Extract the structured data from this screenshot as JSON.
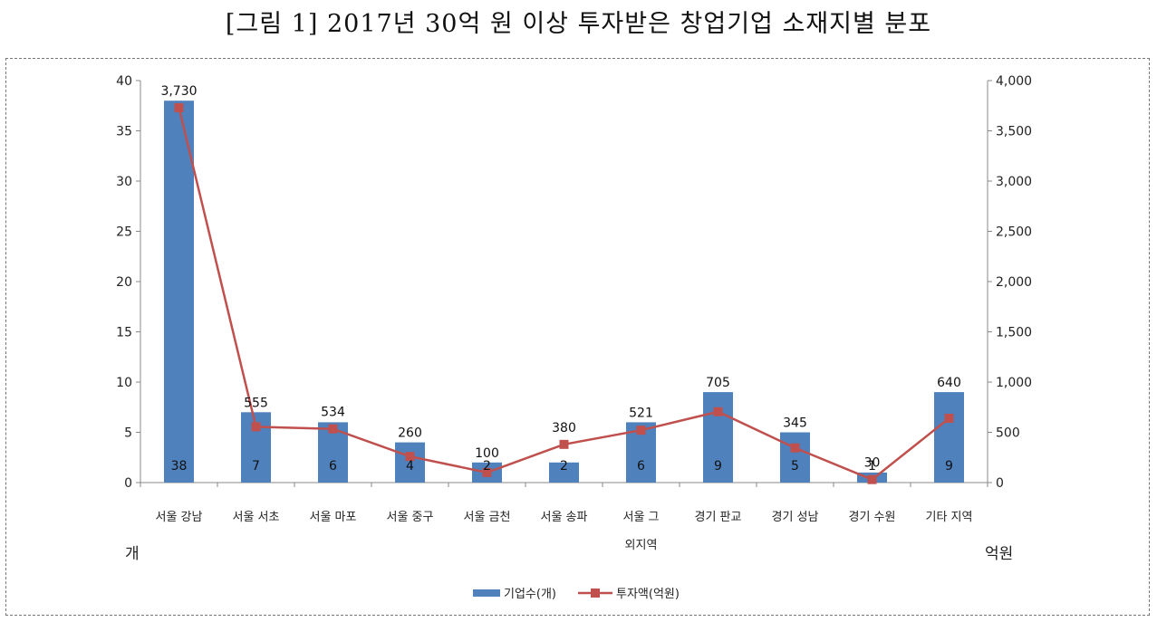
{
  "title": "[그림 1] 2017년 30억 원 이상 투자받은 창업기업 소재지별 분포",
  "left_unit": "개",
  "right_unit": "억원",
  "colors": {
    "bar": "#4f81bd",
    "line": "#c0504d"
  },
  "chart_data": {
    "type": "bar",
    "categories": [
      "서울 강남",
      "서울 서초",
      "서울 마포",
      "서울 중구",
      "서울 금천",
      "서울 송파",
      "서울 그\n외지역",
      "경기 판교",
      "경기 성남",
      "경기 수원",
      "기타 지역"
    ],
    "series": [
      {
        "name": "기업수(개)",
        "type": "bar",
        "axis": "left",
        "values": [
          38,
          7,
          6,
          4,
          2,
          2,
          6,
          9,
          5,
          1,
          9
        ]
      },
      {
        "name": "투자액(억원)",
        "type": "line",
        "axis": "right",
        "values": [
          3730,
          555,
          534,
          260,
          100,
          380,
          521,
          705,
          345,
          30,
          640
        ]
      }
    ],
    "bar_labels": [
      "38",
      "7",
      "6",
      "4",
      "2",
      "2",
      "6",
      "9",
      "5",
      "1",
      "9"
    ],
    "line_labels": [
      "3,730",
      "555",
      "534",
      "260",
      "100",
      "380",
      "521",
      "705",
      "345",
      "30",
      "640"
    ],
    "left_axis": {
      "ylim": [
        0,
        40
      ],
      "ticks": [
        "0",
        "5",
        "10",
        "15",
        "20",
        "25",
        "30",
        "35",
        "40"
      ]
    },
    "right_axis": {
      "ylim": [
        0,
        4000
      ],
      "ticks": [
        "0",
        "500",
        "1,000",
        "1,500",
        "2,000",
        "2,500",
        "3,000",
        "3,500",
        "4,000"
      ]
    },
    "legend_position": "bottom-center",
    "grid": false
  }
}
